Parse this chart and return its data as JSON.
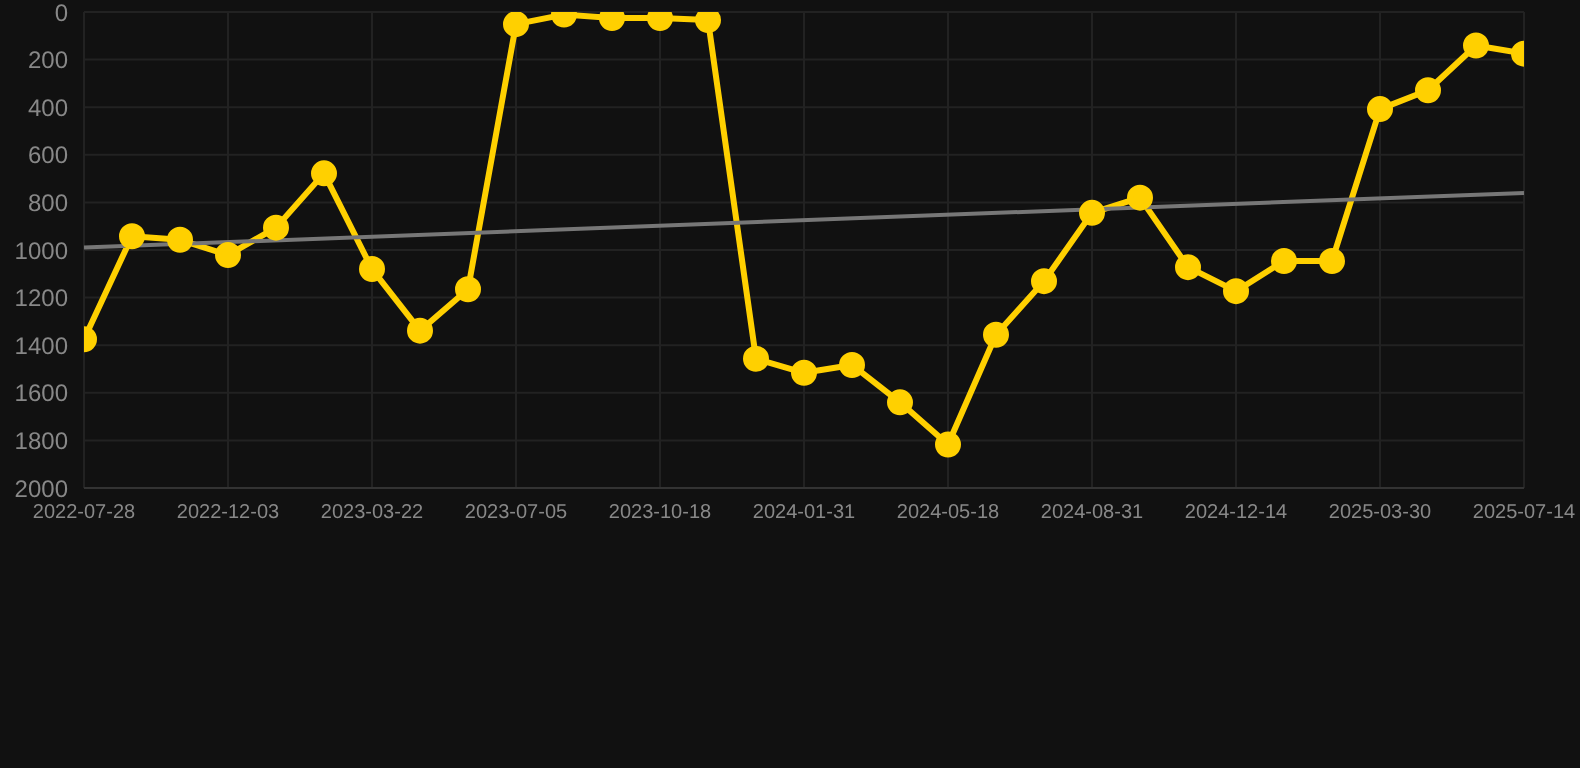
{
  "chart_data": {
    "type": "line",
    "categories": [
      "2022-07-28",
      null,
      null,
      "2022-12-03",
      null,
      null,
      "2023-03-22",
      null,
      null,
      "2023-07-05",
      null,
      null,
      "2023-10-18",
      null,
      null,
      "2024-01-31",
      null,
      null,
      "2024-05-18",
      null,
      null,
      "2024-08-31",
      null,
      null,
      "2024-12-14",
      null,
      null,
      "2025-03-30",
      null,
      null,
      "2025-07-14"
    ],
    "series": [
      {
        "color": "#ffd000",
        "marker": "circle",
        "values": [
          1375,
          942,
          957,
          1021,
          906,
          678,
          1080,
          1339,
          1165,
          51,
          11,
          25,
          25,
          34,
          1457,
          1516,
          1483,
          1640,
          1817,
          1356,
          1131,
          844,
          780,
          1072,
          1173,
          1046,
          1046,
          408,
          329,
          141,
          175
        ]
      },
      {
        "color": "#777777",
        "marker": "none",
        "values": [
          990,
          null,
          null,
          null,
          null,
          null,
          null,
          null,
          null,
          null,
          null,
          null,
          null,
          null,
          null,
          null,
          null,
          null,
          null,
          null,
          null,
          null,
          null,
          null,
          null,
          null,
          null,
          null,
          null,
          null,
          760
        ]
      }
    ],
    "ylim": [
      2000,
      0
    ],
    "yticks": [
      0,
      200,
      400,
      600,
      800,
      1000,
      1200,
      1400,
      1600,
      1800,
      2000
    ],
    "grid": true,
    "legend": false
  }
}
